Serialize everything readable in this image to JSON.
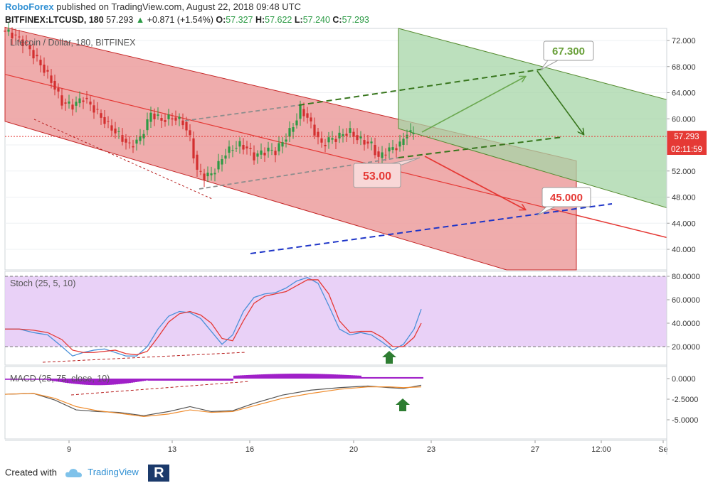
{
  "header": {
    "author": "RoboForex",
    "published": "published on TradingView.com, August 22, 2018 09:48 UTC",
    "symbol": "BITFINEX:LTCUSD, 180",
    "last": "57.293",
    "change": "+0.871 (+1.54%)",
    "o_label": "O:",
    "o": "57.327",
    "h_label": "H:",
    "h": "57.622",
    "l_label": "L:",
    "l": "57.240",
    "c_label": "C:",
    "c": "57.293"
  },
  "main_pane": {
    "title": "Litecoin / Dollar, 180, BITFINEX",
    "price_ticks": [
      "72.000",
      "68.000",
      "64.000",
      "60.000",
      "56.000",
      "52.000",
      "48.000",
      "44.000",
      "40.000"
    ],
    "current_price_label": "57.293",
    "countdown_label": "02:11:59",
    "annotations": {
      "target_up": "67.300",
      "level_mid": "53.00",
      "target_down": "45.000"
    }
  },
  "stoch_pane": {
    "title": "Stoch (25, 5, 10)",
    "ticks": [
      "80.0000",
      "60.0000",
      "40.0000",
      "20.0000"
    ]
  },
  "macd_pane": {
    "title": "MACD (25, 75, close, 10)",
    "ticks": [
      "0.0000",
      "-2.5000",
      "-5.0000"
    ]
  },
  "time_axis": [
    "9",
    "13",
    "16",
    "20",
    "23",
    "27",
    "12:00",
    "Se"
  ],
  "footer": {
    "created_with": "Created with",
    "brand": "TradingView"
  },
  "colors": {
    "bull": "#26a69a",
    "bear": "#ef5350",
    "red_channel": "#e57373",
    "green_channel": "#a5d6a7",
    "stoch_fill": "#e1bee7",
    "macd_hist": "#9c27b0"
  },
  "chart_data": {
    "type": "line",
    "price_series": {
      "points": [
        [
          0,
          73.5
        ],
        [
          10,
          73.2
        ],
        [
          20,
          72.6
        ],
        [
          35,
          71.3
        ],
        [
          55,
          68.3
        ],
        [
          70,
          65.8
        ],
        [
          85,
          62.5
        ],
        [
          100,
          62.0
        ],
        [
          115,
          63.2
        ],
        [
          130,
          61.5
        ],
        [
          150,
          59.0
        ],
        [
          165,
          57.5
        ],
        [
          180,
          55.8
        ],
        [
          195,
          57.0
        ],
        [
          210,
          60.8
        ],
        [
          225,
          59.8
        ],
        [
          240,
          60.2
        ],
        [
          255,
          59.5
        ],
        [
          265,
          57.0
        ],
        [
          275,
          52.0
        ],
        [
          285,
          51.2
        ],
        [
          295,
          51.5
        ],
        [
          305,
          53.0
        ],
        [
          315,
          54.8
        ],
        [
          325,
          55.5
        ],
        [
          335,
          56.0
        ],
        [
          345,
          55.5
        ],
        [
          355,
          54.2
        ],
        [
          365,
          54.8
        ],
        [
          375,
          55.2
        ],
        [
          385,
          55.0
        ],
        [
          395,
          56.5
        ],
        [
          405,
          58.0
        ],
        [
          415,
          60.0
        ],
        [
          420,
          61.5
        ],
        [
          430,
          60.2
        ],
        [
          440,
          58.0
        ],
        [
          450,
          56.0
        ],
        [
          460,
          56.8
        ],
        [
          470,
          57.0
        ],
        [
          480,
          57.7
        ],
        [
          490,
          58.0
        ],
        [
          500,
          57.0
        ],
        [
          510,
          56.5
        ],
        [
          520,
          56.0
        ],
        [
          530,
          54.0
        ],
        [
          540,
          55.0
        ],
        [
          550,
          55.5
        ],
        [
          560,
          56.0
        ],
        [
          570,
          58.0
        ],
        [
          578,
          57.3
        ]
      ]
    },
    "channels": {
      "red_upper": [
        [
          0,
          74.2
        ],
        [
          930,
          50.5
        ]
      ],
      "red_lower": [
        [
          0,
          59.8
        ],
        [
          930,
          33.5
        ]
      ],
      "green_lower": [
        [
          560,
          58.5
        ],
        [
          995,
          44.5
        ]
      ],
      "green_upper": [
        [
          560,
          75.5
        ],
        [
          995,
          61.0
        ]
      ]
    },
    "stoch_k": [
      [
        0,
        35
      ],
      [
        20,
        35
      ],
      [
        40,
        32
      ],
      [
        60,
        30
      ],
      [
        80,
        20
      ],
      [
        95,
        12
      ],
      [
        110,
        15
      ],
      [
        125,
        17
      ],
      [
        140,
        18
      ],
      [
        155,
        15
      ],
      [
        170,
        12
      ],
      [
        185,
        12
      ],
      [
        200,
        20
      ],
      [
        215,
        35
      ],
      [
        230,
        46
      ],
      [
        245,
        50
      ],
      [
        260,
        49
      ],
      [
        275,
        44
      ],
      [
        290,
        33
      ],
      [
        305,
        22
      ],
      [
        320,
        30
      ],
      [
        335,
        50
      ],
      [
        350,
        62
      ],
      [
        365,
        65
      ],
      [
        380,
        66
      ],
      [
        395,
        70
      ],
      [
        410,
        76
      ],
      [
        425,
        79
      ],
      [
        440,
        74
      ],
      [
        455,
        55
      ],
      [
        470,
        35
      ],
      [
        485,
        30
      ],
      [
        500,
        32
      ],
      [
        515,
        30
      ],
      [
        530,
        24
      ],
      [
        545,
        17
      ],
      [
        560,
        22
      ],
      [
        575,
        35
      ],
      [
        585,
        52
      ]
    ],
    "stoch_d": [
      [
        0,
        35
      ],
      [
        20,
        35
      ],
      [
        40,
        34
      ],
      [
        60,
        32
      ],
      [
        80,
        26
      ],
      [
        95,
        17
      ],
      [
        110,
        15
      ],
      [
        125,
        15
      ],
      [
        140,
        16
      ],
      [
        155,
        17
      ],
      [
        170,
        14
      ],
      [
        185,
        13
      ],
      [
        200,
        16
      ],
      [
        215,
        28
      ],
      [
        230,
        41
      ],
      [
        245,
        48
      ],
      [
        260,
        50
      ],
      [
        275,
        47
      ],
      [
        290,
        40
      ],
      [
        305,
        27
      ],
      [
        320,
        25
      ],
      [
        335,
        42
      ],
      [
        350,
        57
      ],
      [
        365,
        63
      ],
      [
        380,
        65
      ],
      [
        395,
        67
      ],
      [
        410,
        72
      ],
      [
        425,
        77
      ],
      [
        440,
        77
      ],
      [
        455,
        65
      ],
      [
        470,
        42
      ],
      [
        485,
        32
      ],
      [
        500,
        33
      ],
      [
        515,
        33
      ],
      [
        530,
        28
      ],
      [
        545,
        20
      ],
      [
        560,
        20
      ],
      [
        575,
        28
      ],
      [
        585,
        40
      ]
    ],
    "macd_line": [
      [
        0,
        -1.9
      ],
      [
        40,
        -1.8
      ],
      [
        70,
        -2.6
      ],
      [
        100,
        -3.8
      ],
      [
        130,
        -4.0
      ],
      [
        160,
        -4.1
      ],
      [
        195,
        -4.5
      ],
      [
        230,
        -4.0
      ],
      [
        260,
        -3.4
      ],
      [
        290,
        -4.0
      ],
      [
        320,
        -3.9
      ],
      [
        350,
        -3.0
      ],
      [
        390,
        -2.0
      ],
      [
        430,
        -1.4
      ],
      [
        470,
        -1.1
      ],
      [
        510,
        -0.9
      ],
      [
        540,
        -1.1
      ],
      [
        560,
        -1.2
      ],
      [
        585,
        -0.8
      ]
    ],
    "signal_line": [
      [
        0,
        -1.9
      ],
      [
        40,
        -1.8
      ],
      [
        70,
        -2.4
      ],
      [
        100,
        -3.4
      ],
      [
        130,
        -3.9
      ],
      [
        160,
        -4.2
      ],
      [
        195,
        -4.6
      ],
      [
        230,
        -4.3
      ],
      [
        260,
        -3.8
      ],
      [
        290,
        -4.1
      ],
      [
        320,
        -4.0
      ],
      [
        350,
        -3.3
      ],
      [
        390,
        -2.4
      ],
      [
        430,
        -1.8
      ],
      [
        470,
        -1.3
      ],
      [
        510,
        -1.0
      ],
      [
        540,
        -1.0
      ],
      [
        560,
        -1.1
      ],
      [
        585,
        -1.0
      ]
    ]
  }
}
